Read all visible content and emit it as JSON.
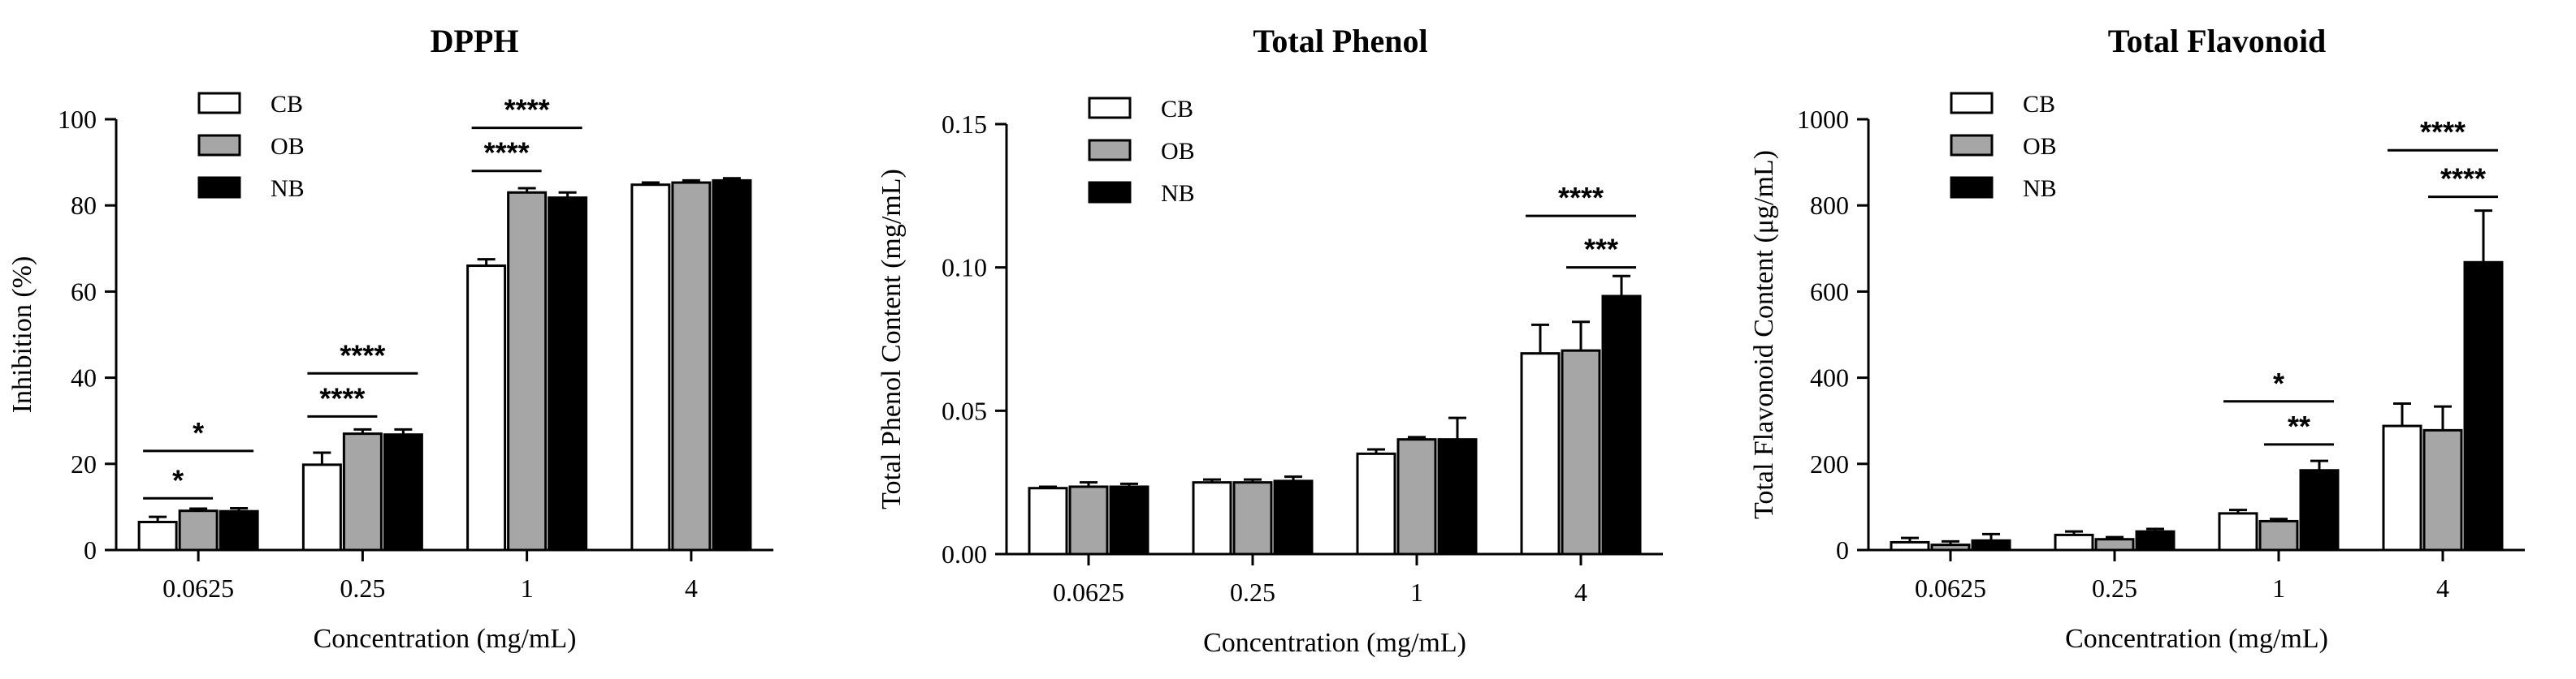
{
  "chart_data": [
    {
      "type": "bar",
      "title": "DPPH",
      "xlabel": "Concentration (mg/mL)",
      "ylabel": "Inhibition (%)",
      "categories": [
        "0.0625",
        "0.25",
        "1",
        "4"
      ],
      "ylim": [
        0,
        100
      ],
      "yticks": [
        "0",
        "20",
        "40",
        "60",
        "80",
        "100"
      ],
      "legend_position": "top-left",
      "series": [
        {
          "name": "CB",
          "color": "#ffffff",
          "values": [
            6.5,
            19.8,
            66.0,
            84.8
          ],
          "errors": [
            1.2,
            2.8,
            1.5,
            0.5
          ]
        },
        {
          "name": "OB",
          "color": "#a6a6a6",
          "values": [
            9.1,
            27.0,
            83.0,
            85.3
          ],
          "errors": [
            0.5,
            1.0,
            1.0,
            0.5
          ]
        },
        {
          "name": "NB",
          "color": "#000000",
          "values": [
            9.0,
            26.8,
            81.8,
            85.8
          ],
          "errors": [
            0.7,
            1.2,
            1.2,
            0.5
          ]
        }
      ],
      "significance": [
        {
          "category": 0,
          "from": 0,
          "to": 1,
          "label": "*",
          "y": 12
        },
        {
          "category": 0,
          "from": 0,
          "to": 2,
          "label": "*",
          "y": 23
        },
        {
          "category": 1,
          "from": 0,
          "to": 1,
          "label": "****",
          "y": 31
        },
        {
          "category": 1,
          "from": 0,
          "to": 2,
          "label": "****",
          "y": 41
        },
        {
          "category": 2,
          "from": 0,
          "to": 1,
          "label": "****",
          "y": 88
        },
        {
          "category": 2,
          "from": 0,
          "to": 2,
          "label": "****",
          "y": 98
        }
      ]
    },
    {
      "type": "bar",
      "title": "Total Phenol",
      "xlabel": "Concentration (mg/mL)",
      "ylabel": "Total Phenol Content (mg/mL)",
      "categories": [
        "0.0625",
        "0.25",
        "1",
        "4"
      ],
      "ylim": [
        0,
        0.15
      ],
      "yticks": [
        "0.00",
        "0.05",
        "0.10",
        "0.15"
      ],
      "legend_position": "top-left",
      "series": [
        {
          "name": "CB",
          "color": "#ffffff",
          "values": [
            0.023,
            0.025,
            0.035,
            0.07
          ],
          "errors": [
            0.0005,
            0.001,
            0.0015,
            0.01
          ]
        },
        {
          "name": "OB",
          "color": "#a6a6a6",
          "values": [
            0.0235,
            0.025,
            0.04,
            0.071
          ],
          "errors": [
            0.0015,
            0.001,
            0.0008,
            0.01
          ]
        },
        {
          "name": "NB",
          "color": "#000000",
          "values": [
            0.0235,
            0.0255,
            0.04,
            0.09
          ],
          "errors": [
            0.001,
            0.0015,
            0.0075,
            0.007
          ]
        }
      ],
      "significance": [
        {
          "category": 3,
          "from": 1,
          "to": 2,
          "label": "***",
          "y": 0.1
        },
        {
          "category": 3,
          "from": 0,
          "to": 2,
          "label": "****",
          "y": 0.118
        }
      ]
    },
    {
      "type": "bar",
      "title": "Total Flavonoid",
      "xlabel": "Concentration (mg/mL)",
      "ylabel": "Total Flavonoid Content (μg/mL)",
      "categories": [
        "0.0625",
        "0.25",
        "1",
        "4"
      ],
      "ylim": [
        0,
        1000
      ],
      "yticks": [
        "0",
        "200",
        "400",
        "600",
        "800",
        "1000"
      ],
      "legend_position": "top-left",
      "series": [
        {
          "name": "CB",
          "color": "#ffffff",
          "values": [
            18,
            35,
            85,
            288
          ],
          "errors": [
            10,
            8,
            8,
            52
          ]
        },
        {
          "name": "OB",
          "color": "#a6a6a6",
          "values": [
            12,
            25,
            67,
            278
          ],
          "errors": [
            8,
            5,
            5,
            55
          ]
        },
        {
          "name": "NB",
          "color": "#000000",
          "values": [
            22,
            43,
            185,
            668
          ],
          "errors": [
            15,
            6,
            22,
            120
          ]
        }
      ],
      "significance": [
        {
          "category": 2,
          "from": 1,
          "to": 2,
          "label": "**",
          "y": 245
        },
        {
          "category": 2,
          "from": 0,
          "to": 2,
          "label": "*",
          "y": 345
        },
        {
          "category": 3,
          "from": 1,
          "to": 2,
          "label": "****",
          "y": 820
        },
        {
          "category": 3,
          "from": 0,
          "to": 2,
          "label": "****",
          "y": 928
        }
      ]
    }
  ]
}
